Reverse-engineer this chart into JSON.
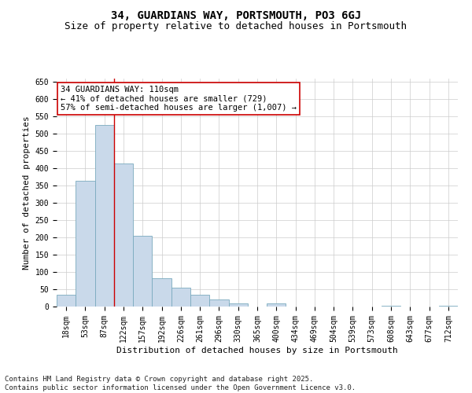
{
  "title": "34, GUARDIANS WAY, PORTSMOUTH, PO3 6GJ",
  "subtitle": "Size of property relative to detached houses in Portsmouth",
  "xlabel": "Distribution of detached houses by size in Portsmouth",
  "ylabel": "Number of detached properties",
  "categories": [
    "18sqm",
    "53sqm",
    "87sqm",
    "122sqm",
    "157sqm",
    "192sqm",
    "226sqm",
    "261sqm",
    "296sqm",
    "330sqm",
    "365sqm",
    "400sqm",
    "434sqm",
    "469sqm",
    "504sqm",
    "539sqm",
    "573sqm",
    "608sqm",
    "643sqm",
    "677sqm",
    "712sqm"
  ],
  "values": [
    35,
    365,
    525,
    415,
    205,
    83,
    55,
    35,
    20,
    10,
    0,
    10,
    0,
    0,
    0,
    0,
    0,
    3,
    0,
    0,
    3
  ],
  "bar_color": "#c9d9ea",
  "bar_edge_color": "#7aaabe",
  "grid_color": "#cccccc",
  "bg_color": "#ffffff",
  "red_line_x": 2.5,
  "annotation_line1": "34 GUARDIANS WAY: 110sqm",
  "annotation_line2": "← 41% of detached houses are smaller (729)",
  "annotation_line3": "57% of semi-detached houses are larger (1,007) →",
  "annotation_box_color": "#ffffff",
  "annotation_edge_color": "#cc0000",
  "ylim": [
    0,
    660
  ],
  "yticks": [
    0,
    50,
    100,
    150,
    200,
    250,
    300,
    350,
    400,
    450,
    500,
    550,
    600,
    650
  ],
  "footnote": "Contains HM Land Registry data © Crown copyright and database right 2025.\nContains public sector information licensed under the Open Government Licence v3.0.",
  "title_fontsize": 10,
  "subtitle_fontsize": 9,
  "xlabel_fontsize": 8,
  "ylabel_fontsize": 8,
  "tick_fontsize": 7,
  "annotation_fontsize": 7.5,
  "footnote_fontsize": 6.5
}
